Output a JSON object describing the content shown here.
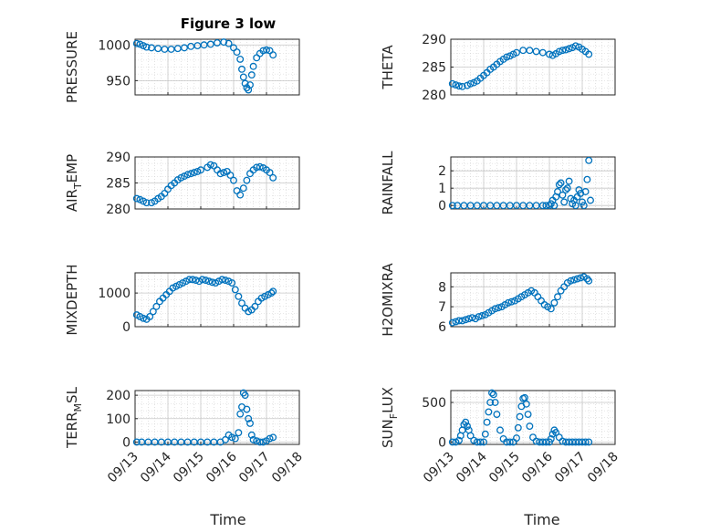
{
  "figure": {
    "title": "Figure 3 low",
    "xlabel": "Time"
  },
  "marker_color": "#0072BD",
  "chart_data": [
    {
      "type": "scatter",
      "ylabel": "PRESSURE",
      "ylim": [
        930,
        1008
      ],
      "yticks": [
        "950",
        "1000"
      ],
      "ytickvals": [
        950,
        1000
      ],
      "xlim": [
        0,
        5
      ],
      "xticks": [],
      "x": [
        0.05,
        0.15,
        0.25,
        0.35,
        0.5,
        0.7,
        0.9,
        1.1,
        1.3,
        1.5,
        1.7,
        1.9,
        2.1,
        2.3,
        2.5,
        2.7,
        2.85,
        3.0,
        3.1,
        3.2,
        3.25,
        3.3,
        3.35,
        3.4,
        3.45,
        3.5,
        3.55,
        3.6,
        3.7,
        3.8,
        3.9,
        4.0,
        4.1,
        4.2
      ],
      "y": [
        1002,
        1001,
        999,
        997,
        996,
        995,
        994,
        994,
        995,
        996,
        998,
        999,
        1000,
        1001,
        1003,
        1004,
        1002,
        996,
        990,
        980,
        966,
        955,
        946,
        940,
        937,
        944,
        958,
        970,
        982,
        988,
        992,
        993,
        992,
        986
      ]
    },
    {
      "type": "scatter",
      "ylabel": "THETA",
      "ylim": [
        280,
        290
      ],
      "yticks": [
        "280",
        "285",
        "290"
      ],
      "ytickvals": [
        280,
        285,
        290
      ],
      "xlim": [
        0,
        5
      ],
      "xticks": [],
      "x": [
        0.05,
        0.15,
        0.25,
        0.35,
        0.5,
        0.6,
        0.7,
        0.8,
        0.9,
        1.0,
        1.1,
        1.2,
        1.3,
        1.4,
        1.5,
        1.6,
        1.7,
        1.8,
        1.9,
        2.0,
        2.2,
        2.4,
        2.6,
        2.8,
        3.0,
        3.1,
        3.2,
        3.3,
        3.4,
        3.5,
        3.6,
        3.7,
        3.8,
        3.9,
        4.0,
        4.1,
        4.2
      ],
      "y": [
        282,
        281.8,
        281.6,
        281.5,
        281.7,
        282,
        282.2,
        282.5,
        283,
        283.5,
        284,
        284.6,
        285,
        285.5,
        286,
        286.4,
        286.8,
        287,
        287.3,
        287.6,
        288,
        288,
        287.8,
        287.6,
        287.3,
        287.1,
        287.4,
        287.8,
        288,
        288.1,
        288.3,
        288.5,
        288.8,
        288.6,
        288.2,
        287.8,
        287.3
      ]
    },
    {
      "type": "scatter",
      "ylabel": "AIR_TEMP",
      "ylabel_main": "AIR",
      "ylabel_sub": "T",
      "ylabel_rest": "EMP",
      "ylim": [
        280,
        290
      ],
      "yticks": [
        "280",
        "285",
        "290"
      ],
      "ytickvals": [
        280,
        285,
        290
      ],
      "xlim": [
        0,
        5
      ],
      "xticks": [],
      "x": [
        0.05,
        0.15,
        0.25,
        0.35,
        0.5,
        0.6,
        0.7,
        0.8,
        0.9,
        1.0,
        1.1,
        1.2,
        1.3,
        1.4,
        1.5,
        1.6,
        1.7,
        1.8,
        1.9,
        2.0,
        2.2,
        2.3,
        2.4,
        2.5,
        2.6,
        2.7,
        2.8,
        2.9,
        3.0,
        3.1,
        3.2,
        3.3,
        3.4,
        3.5,
        3.6,
        3.7,
        3.8,
        3.9,
        4.0,
        4.1,
        4.2
      ],
      "y": [
        282,
        281.8,
        281.5,
        281.2,
        281.2,
        281.5,
        282,
        282.4,
        283,
        283.8,
        284.5,
        285,
        285.6,
        286,
        286.3,
        286.6,
        286.8,
        287,
        287.2,
        287.5,
        288,
        288.5,
        288.3,
        287.5,
        286.8,
        287,
        287.2,
        286.5,
        285.5,
        283.5,
        282.7,
        284,
        285.5,
        286.8,
        287.5,
        288,
        288.1,
        287.9,
        287.5,
        287,
        286
      ]
    },
    {
      "type": "scatter",
      "ylabel": "RAINFALL",
      "ylim": [
        -0.2,
        2.8
      ],
      "yticks": [
        "0",
        "1",
        "2"
      ],
      "ytickvals": [
        0,
        1,
        2
      ],
      "xlim": [
        0,
        5
      ],
      "xticks": [],
      "x": [
        0.05,
        0.2,
        0.4,
        0.6,
        0.8,
        1.0,
        1.2,
        1.4,
        1.6,
        1.8,
        2.0,
        2.2,
        2.4,
        2.6,
        2.8,
        2.9,
        3.0,
        3.05,
        3.1,
        3.15,
        3.2,
        3.25,
        3.3,
        3.35,
        3.4,
        3.45,
        3.5,
        3.55,
        3.6,
        3.65,
        3.7,
        3.75,
        3.8,
        3.85,
        3.9,
        3.95,
        4.0,
        4.05,
        4.1,
        4.15,
        4.2,
        4.25
      ],
      "y": [
        0,
        0,
        0,
        0,
        0,
        0,
        0,
        0,
        0,
        0,
        0,
        0,
        0,
        0,
        0,
        0,
        0,
        0.1,
        0.3,
        0,
        0.5,
        0.8,
        1.2,
        1.3,
        0.6,
        0.2,
        0.9,
        1.0,
        1.4,
        0.4,
        0.1,
        0.3,
        0,
        0.5,
        0.9,
        0.7,
        0.2,
        0,
        0.8,
        1.5,
        2.6,
        0.3
      ]
    },
    {
      "type": "scatter",
      "ylabel": "MIXDEPTH",
      "ylim": [
        0,
        1600
      ],
      "yticks": [
        "0",
        "1000"
      ],
      "ytickvals": [
        0,
        1000
      ],
      "xlim": [
        0,
        5
      ],
      "xticks": [],
      "x": [
        0.05,
        0.15,
        0.25,
        0.35,
        0.45,
        0.55,
        0.65,
        0.75,
        0.85,
        0.95,
        1.05,
        1.15,
        1.25,
        1.35,
        1.45,
        1.55,
        1.65,
        1.75,
        1.85,
        1.95,
        2.05,
        2.15,
        2.25,
        2.35,
        2.45,
        2.55,
        2.65,
        2.75,
        2.85,
        2.95,
        3.05,
        3.15,
        3.25,
        3.35,
        3.45,
        3.55,
        3.65,
        3.75,
        3.85,
        3.95,
        4.05,
        4.15,
        4.2
      ],
      "y": [
        350,
        300,
        250,
        220,
        300,
        450,
        600,
        750,
        850,
        950,
        1050,
        1150,
        1200,
        1250,
        1300,
        1350,
        1400,
        1400,
        1380,
        1350,
        1400,
        1380,
        1350,
        1320,
        1300,
        1350,
        1400,
        1380,
        1350,
        1300,
        1100,
        900,
        700,
        550,
        450,
        500,
        600,
        750,
        850,
        900,
        950,
        1000,
        1050
      ]
    },
    {
      "type": "scatter",
      "ylabel": "H2OMIXRA",
      "ylim": [
        6,
        8.7
      ],
      "yticks": [
        "6",
        "7",
        "8"
      ],
      "ytickvals": [
        6,
        7,
        8
      ],
      "xlim": [
        0,
        5
      ],
      "xticks": [],
      "x": [
        0.05,
        0.15,
        0.25,
        0.35,
        0.45,
        0.55,
        0.65,
        0.75,
        0.85,
        0.95,
        1.05,
        1.15,
        1.25,
        1.35,
        1.45,
        1.55,
        1.65,
        1.75,
        1.85,
        1.95,
        2.05,
        2.15,
        2.25,
        2.35,
        2.45,
        2.55,
        2.65,
        2.75,
        2.85,
        2.95,
        3.05,
        3.15,
        3.25,
        3.35,
        3.45,
        3.55,
        3.65,
        3.75,
        3.85,
        3.95,
        4.05,
        4.15,
        4.2
      ],
      "y": [
        6.2,
        6.25,
        6.3,
        6.3,
        6.35,
        6.4,
        6.45,
        6.4,
        6.5,
        6.55,
        6.6,
        6.7,
        6.8,
        6.9,
        6.95,
        7.0,
        7.1,
        7.2,
        7.25,
        7.3,
        7.4,
        7.5,
        7.6,
        7.7,
        7.8,
        7.7,
        7.5,
        7.3,
        7.1,
        7.0,
        6.9,
        7.2,
        7.5,
        7.8,
        8.0,
        8.2,
        8.3,
        8.35,
        8.4,
        8.45,
        8.5,
        8.4,
        8.3
      ]
    },
    {
      "type": "scatter",
      "ylabel": "TERR_MSL",
      "ylabel_main": "TERR",
      "ylabel_sub": "M",
      "ylabel_rest": "SL",
      "ylim": [
        -10,
        220
      ],
      "yticks": [
        "0",
        "100",
        "200"
      ],
      "ytickvals": [
        0,
        100,
        200
      ],
      "xlim": [
        0,
        5
      ],
      "xticks": [
        "09/13",
        "09/14",
        "09/15",
        "09/16",
        "09/17",
        "09/18"
      ],
      "xtickvals": [
        0,
        1,
        2,
        3,
        4,
        5
      ],
      "x": [
        0.05,
        0.2,
        0.4,
        0.6,
        0.8,
        1.0,
        1.2,
        1.4,
        1.6,
        1.8,
        2.0,
        2.2,
        2.4,
        2.6,
        2.75,
        2.85,
        2.95,
        3.05,
        3.15,
        3.2,
        3.25,
        3.3,
        3.35,
        3.4,
        3.45,
        3.5,
        3.55,
        3.6,
        3.7,
        3.8,
        3.9,
        4.0,
        4.1,
        4.2
      ],
      "y": [
        0,
        0,
        0,
        0,
        0,
        0,
        0,
        0,
        0,
        0,
        0,
        0,
        0,
        0,
        10,
        30,
        20,
        15,
        40,
        120,
        150,
        210,
        200,
        140,
        100,
        80,
        30,
        10,
        5,
        0,
        0,
        5,
        15,
        20
      ]
    },
    {
      "type": "scatter",
      "ylabel": "SUN_FLUX",
      "ylabel_main": "SUN",
      "ylabel_sub": "F",
      "ylabel_rest": "LUX",
      "ylim": [
        -30,
        650
      ],
      "yticks": [
        "0",
        "500"
      ],
      "ytickvals": [
        0,
        500
      ],
      "xlim": [
        0,
        5
      ],
      "xticks": [
        "09/13",
        "09/14",
        "09/15",
        "09/16",
        "09/17",
        "09/18"
      ],
      "xtickvals": [
        0,
        1,
        2,
        3,
        4,
        5
      ],
      "x": [
        0.05,
        0.15,
        0.25,
        0.3,
        0.35,
        0.4,
        0.45,
        0.5,
        0.55,
        0.6,
        0.7,
        0.8,
        0.9,
        1.0,
        1.05,
        1.1,
        1.15,
        1.2,
        1.25,
        1.3,
        1.35,
        1.4,
        1.5,
        1.6,
        1.7,
        1.8,
        1.9,
        2.0,
        2.05,
        2.1,
        2.15,
        2.2,
        2.25,
        2.3,
        2.35,
        2.4,
        2.5,
        2.6,
        2.7,
        2.8,
        2.9,
        3.0,
        3.05,
        3.1,
        3.15,
        3.2,
        3.3,
        3.4,
        3.5,
        3.6,
        3.7,
        3.8,
        3.9,
        4.0,
        4.1,
        4.2
      ],
      "y": [
        0,
        0,
        20,
        80,
        150,
        220,
        250,
        200,
        150,
        80,
        20,
        0,
        0,
        0,
        100,
        250,
        380,
        500,
        620,
        600,
        500,
        350,
        150,
        40,
        0,
        0,
        0,
        50,
        180,
        320,
        450,
        550,
        560,
        480,
        350,
        200,
        60,
        10,
        0,
        0,
        0,
        0,
        40,
        100,
        150,
        120,
        60,
        10,
        0,
        0,
        0,
        0,
        0,
        0,
        0,
        0
      ]
    }
  ]
}
